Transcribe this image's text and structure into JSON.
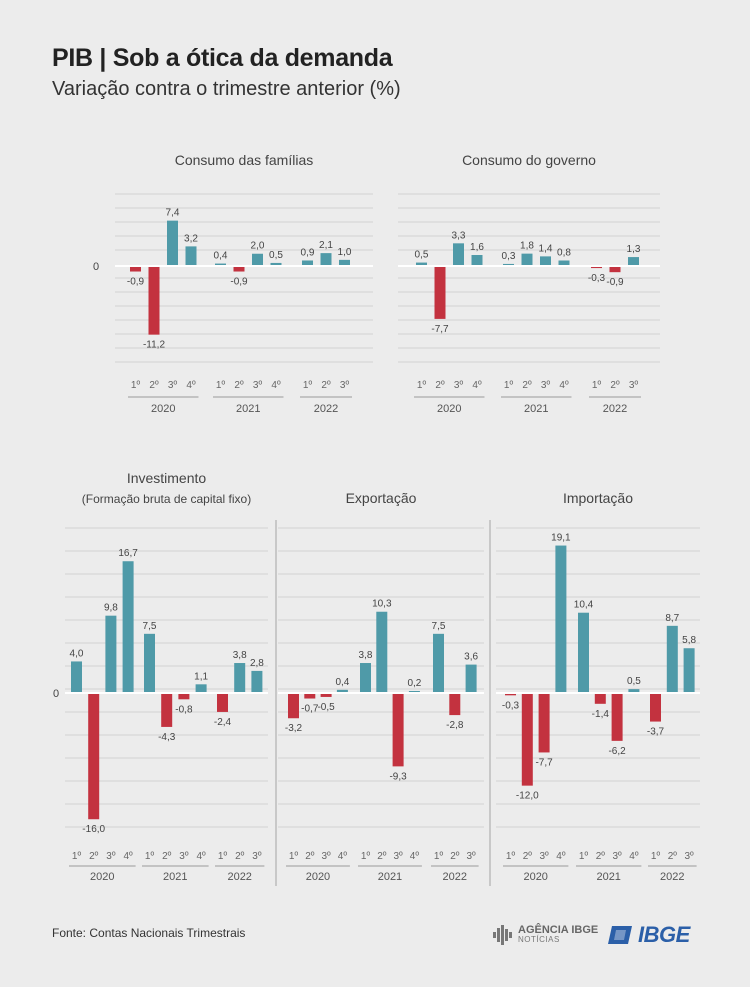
{
  "title": "PIB | Sob a ótica da demanda",
  "subtitle": "Variação contra o trimestre anterior (%)",
  "footer": "Fonte: Contas Nacionais Trimestrais",
  "logos": {
    "agencia_line1": "AGÊNCIA IBGE",
    "agencia_line2": "NOTÍCIAS",
    "ibge": "IBGE"
  },
  "colors": {
    "positive": "#4f9aa8",
    "negative": "#c3323f",
    "grid": "#d2d2d2",
    "text": "#444444"
  },
  "chart_data": [
    {
      "type": "bar",
      "title": "Consumo das famílias",
      "zero_label": "0",
      "year_groups": [
        {
          "year": "2020",
          "quarters": [
            "1º",
            "2º",
            "3º",
            "4º"
          ],
          "values": [
            -0.9,
            -11.2,
            7.4,
            3.2
          ],
          "labels": [
            "-0,9",
            "-11,2",
            "7,4",
            "3,2"
          ]
        },
        {
          "year": "2021",
          "quarters": [
            "1º",
            "2º",
            "3º",
            "4º"
          ],
          "values": [
            0.4,
            -0.9,
            2.0,
            0.5
          ],
          "labels": [
            "0,4",
            "-0,9",
            "2,0",
            "0,5"
          ]
        },
        {
          "year": "2022",
          "quarters": [
            "1º",
            "2º",
            "3º"
          ],
          "values": [
            0.9,
            2.1,
            1.0
          ],
          "labels": [
            "0,9",
            "2,1",
            "1,0"
          ]
        }
      ]
    },
    {
      "type": "bar",
      "title": "Consumo do governo",
      "year_groups": [
        {
          "year": "2020",
          "quarters": [
            "1º",
            "2º",
            "3º",
            "4º"
          ],
          "values": [
            0.5,
            -7.7,
            3.3,
            1.6
          ],
          "labels": [
            "0,5",
            "-7,7",
            "3,3",
            "1,6"
          ]
        },
        {
          "year": "2021",
          "quarters": [
            "1º",
            "2º",
            "3º",
            "4º"
          ],
          "values": [
            0.3,
            1.8,
            1.4,
            0.8
          ],
          "labels": [
            "0,3",
            "1,8",
            "1,4",
            "0,8"
          ]
        },
        {
          "year": "2022",
          "quarters": [
            "1º",
            "2º",
            "3º"
          ],
          "values": [
            -0.3,
            -0.9,
            1.3
          ],
          "labels": [
            "-0,3",
            "-0,9",
            "1,3"
          ]
        }
      ]
    },
    {
      "type": "bar",
      "title": "Investimento",
      "subtitle": "(Formação bruta de capital fixo)",
      "zero_label": "0",
      "year_groups": [
        {
          "year": "2020",
          "quarters": [
            "1º",
            "2º",
            "3º",
            "4º"
          ],
          "values": [
            4.0,
            -16.0,
            9.8,
            16.7
          ],
          "labels": [
            "4,0",
            "-16,0",
            "9,8",
            "16,7"
          ]
        },
        {
          "year": "2021",
          "quarters": [
            "1º",
            "2º",
            "3º",
            "4º"
          ],
          "values": [
            7.5,
            -4.3,
            -0.8,
            1.1
          ],
          "labels": [
            "7,5",
            "-4,3",
            "-0,8",
            "1,1"
          ]
        },
        {
          "year": "2022",
          "quarters": [
            "1º",
            "2º",
            "3º"
          ],
          "values": [
            -2.4,
            3.8,
            2.8
          ],
          "labels": [
            "-2,4",
            "3,8",
            "2,8"
          ]
        }
      ]
    },
    {
      "type": "bar",
      "title": "Exportação",
      "year_groups": [
        {
          "year": "2020",
          "quarters": [
            "1º",
            "2º",
            "3º",
            "4º"
          ],
          "values": [
            -3.2,
            -0.7,
            -0.5,
            0.4
          ],
          "labels": [
            "-3,2",
            "-0,7",
            "-0,5",
            "0,4"
          ]
        },
        {
          "year": "2021",
          "quarters": [
            "1º",
            "2º",
            "3º",
            "4º"
          ],
          "values": [
            3.8,
            10.3,
            -9.3,
            0.2
          ],
          "labels": [
            "3,8",
            "10,3",
            "-9,3",
            "0,2"
          ]
        },
        {
          "year": "2022",
          "quarters": [
            "1º",
            "2º",
            "3º"
          ],
          "values": [
            7.5,
            -2.8,
            3.6
          ],
          "labels": [
            "7,5",
            "-2,8",
            "3,6"
          ]
        }
      ]
    },
    {
      "type": "bar",
      "title": "Importação",
      "year_groups": [
        {
          "year": "2020",
          "quarters": [
            "1º",
            "2º",
            "3º",
            "4º"
          ],
          "values": [
            -0.3,
            -12.0,
            -7.7,
            19.1
          ],
          "labels": [
            "-0,3",
            "-12,0",
            "-7,7",
            "19,1"
          ]
        },
        {
          "year": "2021",
          "quarters": [
            "1º",
            "2º",
            "3º",
            "4º"
          ],
          "values": [
            10.4,
            -1.4,
            -6.2,
            0.5
          ],
          "labels": [
            "10,4",
            "-1,4",
            "-6,2",
            "0,5"
          ]
        },
        {
          "year": "2022",
          "quarters": [
            "1º",
            "2º",
            "3º"
          ],
          "values": [
            -3.7,
            8.7,
            5.8
          ],
          "labels": [
            "-3,7",
            "8,7",
            "5,8"
          ]
        }
      ]
    }
  ]
}
